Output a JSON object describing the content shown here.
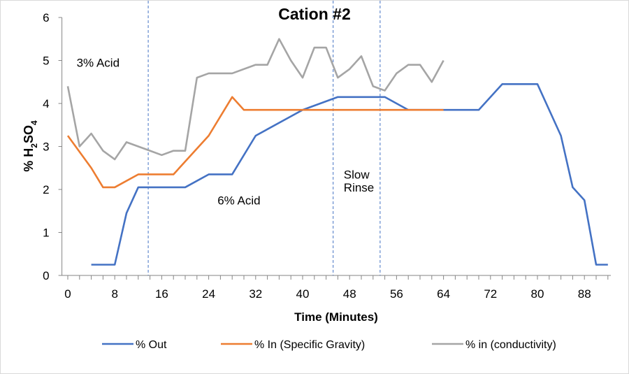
{
  "chart_data": {
    "type": "line",
    "title": "Cation #2",
    "xlabel": "Time (Minutes)",
    "ylabel": "% H2SO4",
    "ylabel_parts": {
      "main": "% H",
      "sub1": "2",
      "mid": "SO",
      "sub2": "4"
    },
    "xlim": [
      -1,
      92.5
    ],
    "ylim": [
      0,
      6
    ],
    "xticks": [
      0,
      8,
      16,
      24,
      32,
      40,
      48,
      56,
      64,
      72,
      80,
      88
    ],
    "yticks": [
      0,
      1,
      2,
      3,
      4,
      5,
      6
    ],
    "grid": false,
    "legend_position": "bottom",
    "vlines": [
      13.7,
      45.2,
      53.2
    ],
    "annotations": [
      {
        "text": "3% Acid",
        "x": 1.5,
        "y": 4.85
      },
      {
        "text": "6% Acid",
        "x": 25.5,
        "y": 1.65
      },
      {
        "text": "Slow",
        "x": 47,
        "y": 2.25
      },
      {
        "text": "Rinse",
        "x": 47,
        "y": 1.95
      }
    ],
    "series": [
      {
        "name": "% Out",
        "color": "#4472c4",
        "x": [
          4,
          8,
          10,
          12,
          20,
          24,
          28,
          32,
          40,
          46,
          54,
          58,
          70,
          74,
          80,
          84,
          86,
          88,
          90,
          92
        ],
        "y": [
          0.25,
          0.25,
          1.45,
          2.05,
          2.05,
          2.35,
          2.35,
          3.25,
          3.85,
          4.15,
          4.15,
          3.85,
          3.85,
          4.45,
          4.45,
          3.25,
          2.05,
          1.75,
          0.25,
          0.25
        ]
      },
      {
        "name": "% In (Specific Gravity)",
        "color": "#ed7d31",
        "x": [
          0,
          4,
          6,
          8,
          12,
          18,
          24,
          28,
          30,
          64
        ],
        "y": [
          3.25,
          2.5,
          2.05,
          2.05,
          2.35,
          2.35,
          3.25,
          4.15,
          3.85,
          3.85
        ]
      },
      {
        "name": "% in (conductivity)",
        "color": "#a5a5a5",
        "x": [
          0,
          2,
          4,
          6,
          8,
          10,
          12,
          14,
          16,
          18,
          20,
          22,
          24,
          28,
          32,
          34,
          36,
          38,
          40,
          42,
          44,
          46,
          48,
          50,
          52,
          54,
          56,
          58,
          60,
          62,
          64
        ],
        "y": [
          4.4,
          3.0,
          3.3,
          2.9,
          2.7,
          3.1,
          3.0,
          2.9,
          2.8,
          2.9,
          2.9,
          4.6,
          4.7,
          4.7,
          4.9,
          4.9,
          5.5,
          5.0,
          4.6,
          5.3,
          5.3,
          4.6,
          4.8,
          5.1,
          4.4,
          4.3,
          4.7,
          4.9,
          4.9,
          4.5,
          5.0
        ]
      }
    ]
  }
}
